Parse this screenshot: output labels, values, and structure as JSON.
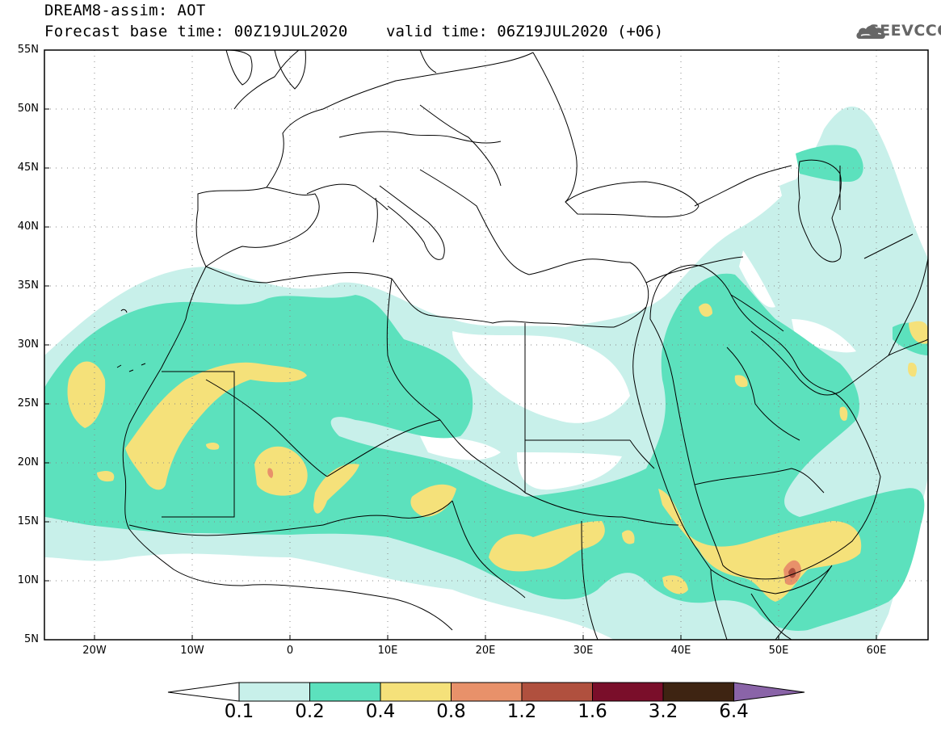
{
  "header": {
    "title": "DREAM8-assim: AOT",
    "forecast_base": "Forecast base time: 00Z19JUL2020",
    "valid_time": "valid time: 06Z19JUL2020 (+06)",
    "logo_text": "SEEVCCC"
  },
  "map": {
    "projection": "lat-lon",
    "lon_range": [
      -25,
      65
    ],
    "lat_range": [
      5,
      55
    ],
    "lat_labels": [
      "55N",
      "50N",
      "45N",
      "40N",
      "35N",
      "30N",
      "25N",
      "20N",
      "15N",
      "10N",
      "5N"
    ],
    "lon_labels": [
      "20W",
      "10W",
      "0",
      "10E",
      "20E",
      "30E",
      "40E",
      "50E",
      "60E"
    ]
  },
  "colorbar": {
    "levels": [
      "0.1",
      "0.2",
      "0.4",
      "0.8",
      "1.2",
      "1.6",
      "3.2",
      "6.4"
    ],
    "colors": [
      "#c8f0ea",
      "#5ce1bd",
      "#f5e17a",
      "#e8916a",
      "#b0503e",
      "#7a0e2a",
      "#3e2412",
      "#8a64a8"
    ],
    "under_color": "#ffffff"
  }
}
